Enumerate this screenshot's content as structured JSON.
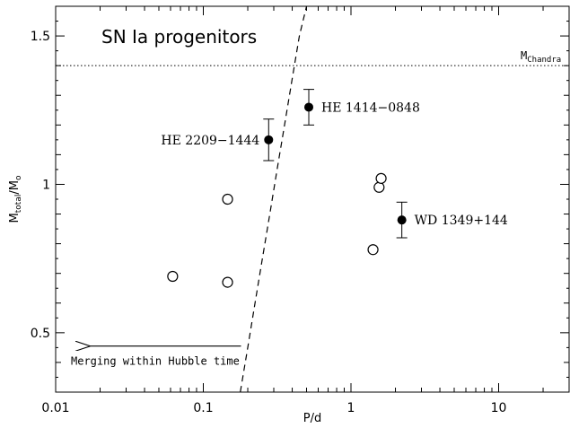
{
  "chart_data": {
    "type": "scatter",
    "title": "SN Ia progenitors",
    "xlabel": "P/d",
    "ylabel_main": "M",
    "ylabel_sub1": "total",
    "ylabel_slash": "/M",
    "ylabel_sub2": "o",
    "x_scale": "log",
    "xlim": [
      0.01,
      30
    ],
    "ylim": [
      0.3,
      1.6
    ],
    "x_ticks": [
      {
        "value": 0.01,
        "label": "0.01"
      },
      {
        "value": 0.1,
        "label": "0.1"
      },
      {
        "value": 1,
        "label": "1"
      },
      {
        "value": 10,
        "label": "10"
      }
    ],
    "y_ticks": [
      {
        "value": 0.5,
        "label": "0.5"
      },
      {
        "value": 1,
        "label": "1"
      },
      {
        "value": 1.5,
        "label": "1.5"
      }
    ],
    "chandra_limit": {
      "y": 1.4,
      "label_main": "M",
      "label_sub": "Chandra"
    },
    "filled_points": [
      {
        "name": "HE 2209−1444",
        "x": 0.277,
        "y": 1.15,
        "yerr_low": 1.08,
        "yerr_high": 1.22
      },
      {
        "name": "HE 1414−0848",
        "x": 0.518,
        "y": 1.26,
        "yerr_low": 1.2,
        "yerr_high": 1.32
      },
      {
        "name": "WD 1349+144",
        "x": 2.21,
        "y": 0.88,
        "yerr_low": 0.82,
        "yerr_high": 0.94
      }
    ],
    "open_points": [
      {
        "x": 0.062,
        "y": 0.69
      },
      {
        "x": 0.146,
        "y": 0.95
      },
      {
        "x": 0.146,
        "y": 0.67
      },
      {
        "x": 1.41,
        "y": 0.78
      },
      {
        "x": 1.55,
        "y": 0.99
      },
      {
        "x": 1.6,
        "y": 1.02
      }
    ],
    "merging_curve": [
      {
        "x": 0.178,
        "y": 0.3
      },
      {
        "x": 0.2,
        "y": 0.45
      },
      {
        "x": 0.224,
        "y": 0.6
      },
      {
        "x": 0.251,
        "y": 0.75
      },
      {
        "x": 0.282,
        "y": 0.9
      },
      {
        "x": 0.316,
        "y": 1.05
      },
      {
        "x": 0.355,
        "y": 1.2
      },
      {
        "x": 0.398,
        "y": 1.35
      },
      {
        "x": 0.447,
        "y": 1.5
      },
      {
        "x": 0.5,
        "y": 1.6
      }
    ],
    "annotation_arrow": {
      "label": "Merging within Hubble time",
      "x_from": 0.18,
      "x_to": 0.0135,
      "y": 0.455
    }
  }
}
